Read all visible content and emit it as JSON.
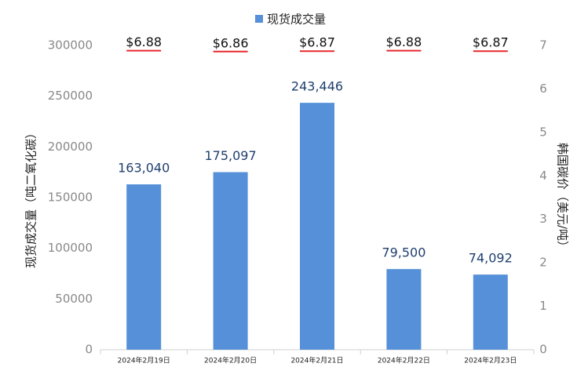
{
  "chart_data": {
    "type": "bar",
    "categories": [
      "2024年2月19日",
      "2024年2月20日",
      "2024年2月21日",
      "2024年2月22日",
      "2024年2月23日"
    ],
    "series": [
      {
        "name": "现货成交量",
        "color": "#5590d8",
        "values": [
          163040,
          175097,
          243446,
          79500,
          74092
        ],
        "value_labels": [
          "163,040",
          "175,097",
          "243,446",
          "79,500",
          "74,092"
        ]
      },
      {
        "color": "#e8282b",
        "axis": "y2",
        "values": [
          6.88,
          6.86,
          6.87,
          6.88,
          6.87
        ],
        "value_labels": [
          "$6.88",
          "$6.86",
          "$6.87",
          "$6.88",
          "$6.87"
        ]
      }
    ],
    "ylabel": "现货成交量（吨二氧化碳）",
    "y2label": "韩国碳价（美元/吨）",
    "ylim": [
      0,
      300000
    ],
    "yticks": [
      0,
      50000,
      100000,
      150000,
      200000,
      250000,
      300000
    ],
    "y2lim": [
      0,
      7
    ],
    "y2ticks": [
      0,
      1,
      2,
      3,
      4,
      5,
      6,
      7
    ],
    "legend": "top"
  }
}
